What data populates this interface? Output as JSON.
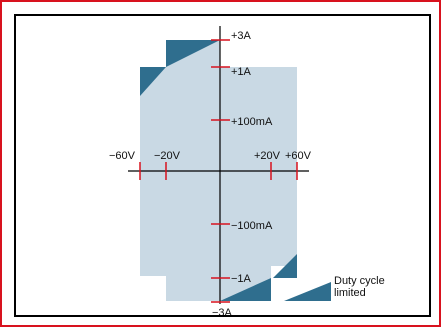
{
  "colors": {
    "border": "#d8121e",
    "region_fill": "#c9d9e4",
    "limited_fill": "#2f6e8e",
    "tick": "#d8121e",
    "axis": "#000000"
  },
  "y_labels": {
    "p3a": "+3A",
    "p1a": "+1A",
    "p100ma": "+100mA",
    "m100ma": "−100mA",
    "m1a": "−1A",
    "m3a": "−3A"
  },
  "x_labels": {
    "m60v": "−60V",
    "m20v": "−20V",
    "p20v": "+20V",
    "p60v": "+60V"
  },
  "legend": {
    "label_line1": "Duty cycle",
    "label_line2": "limited"
  }
}
